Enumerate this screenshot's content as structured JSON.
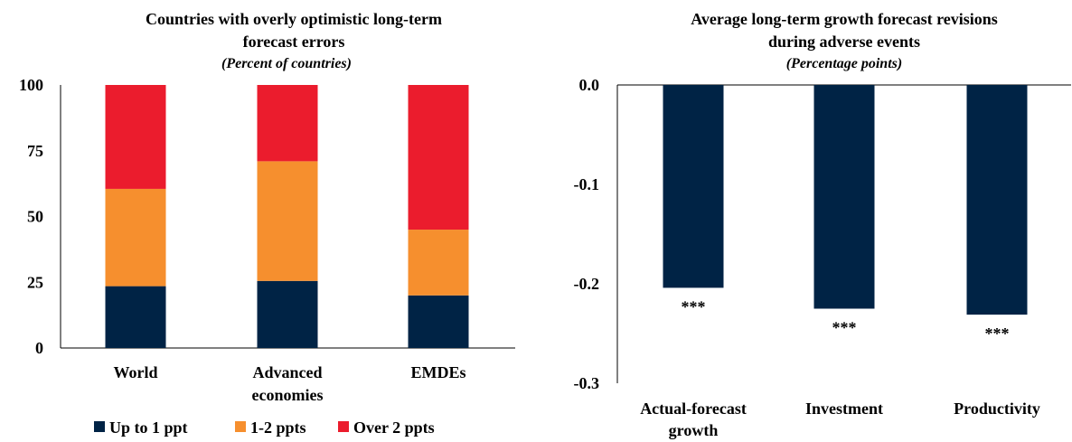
{
  "chart_data": [
    {
      "type": "bar",
      "stacked": true,
      "title": "Countries with overly optimistic long-term forecast errors",
      "subtitle": "(Percent of countries)",
      "categories": [
        "World",
        "Advanced economies",
        "EMDEs"
      ],
      "ylim": [
        0,
        100
      ],
      "yticks": [
        "0",
        "25",
        "50",
        "75",
        "100"
      ],
      "series": [
        {
          "name": "Up to 1 ppt",
          "values": [
            23.5,
            25.5,
            20
          ],
          "color": "#002345"
        },
        {
          "name": "1-2 ppts",
          "values": [
            37,
            45.5,
            25
          ],
          "color": "#f68f2e"
        },
        {
          "name": "Over 2 ppts",
          "values": [
            39.5,
            29,
            55
          ],
          "color": "#eb1c2d"
        }
      ],
      "legend": "bottom",
      "grid": false
    },
    {
      "type": "bar",
      "title": "Average long-term growth forecast revisions during adverse events",
      "subtitle": "(Percentage points)",
      "categories": [
        "Actual-forecast growth",
        "Investment",
        "Productivity"
      ],
      "values": [
        -0.204,
        -0.225,
        -0.231
      ],
      "significance": [
        "***",
        "***",
        "***"
      ],
      "ylim": [
        -0.3,
        0.0
      ],
      "yticks": [
        "0.0",
        "-0.1",
        "-0.2",
        "-0.3"
      ],
      "color": "#002345",
      "grid": false
    }
  ]
}
